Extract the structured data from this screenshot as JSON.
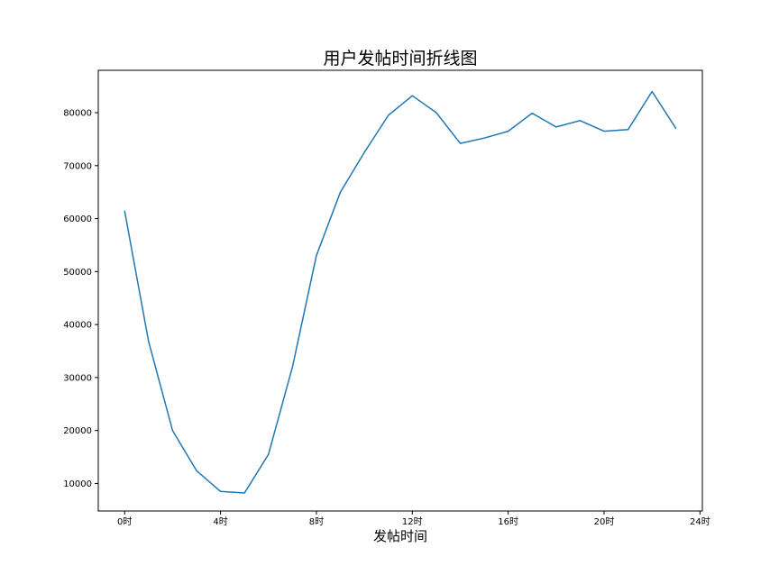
{
  "chart_data": {
    "type": "line",
    "title": "用户发帖时间折线图",
    "xlabel": "发帖时间",
    "ylabel": "",
    "xlim": [
      -1.1,
      24.1
    ],
    "ylim": [
      4800,
      88000
    ],
    "grid": false,
    "x_ticks": [
      {
        "value": 0,
        "label": "0时"
      },
      {
        "value": 4,
        "label": "4时"
      },
      {
        "value": 8,
        "label": "8时"
      },
      {
        "value": 12,
        "label": "12时"
      },
      {
        "value": 16,
        "label": "16时"
      },
      {
        "value": 20,
        "label": "20时"
      },
      {
        "value": 24,
        "label": "24时"
      }
    ],
    "y_ticks": [
      {
        "value": 10000,
        "label": "10000"
      },
      {
        "value": 20000,
        "label": "20000"
      },
      {
        "value": 30000,
        "label": "30000"
      },
      {
        "value": 40000,
        "label": "40000"
      },
      {
        "value": 50000,
        "label": "50000"
      },
      {
        "value": 60000,
        "label": "60000"
      },
      {
        "value": 70000,
        "label": "70000"
      },
      {
        "value": 80000,
        "label": "80000"
      }
    ],
    "series": [
      {
        "color": "#1f77b4",
        "x": [
          0,
          1,
          2,
          3,
          4,
          5,
          6,
          7,
          8,
          9,
          10,
          11,
          12,
          13,
          14,
          15,
          16,
          17,
          18,
          19,
          20,
          21,
          22,
          23
        ],
        "y": [
          61500,
          36800,
          20000,
          12400,
          8500,
          8200,
          15500,
          32000,
          53000,
          65000,
          72500,
          79500,
          83200,
          80000,
          74200,
          75200,
          76500,
          79900,
          77300,
          78500,
          76500,
          76800,
          84000,
          77000
        ]
      }
    ]
  }
}
